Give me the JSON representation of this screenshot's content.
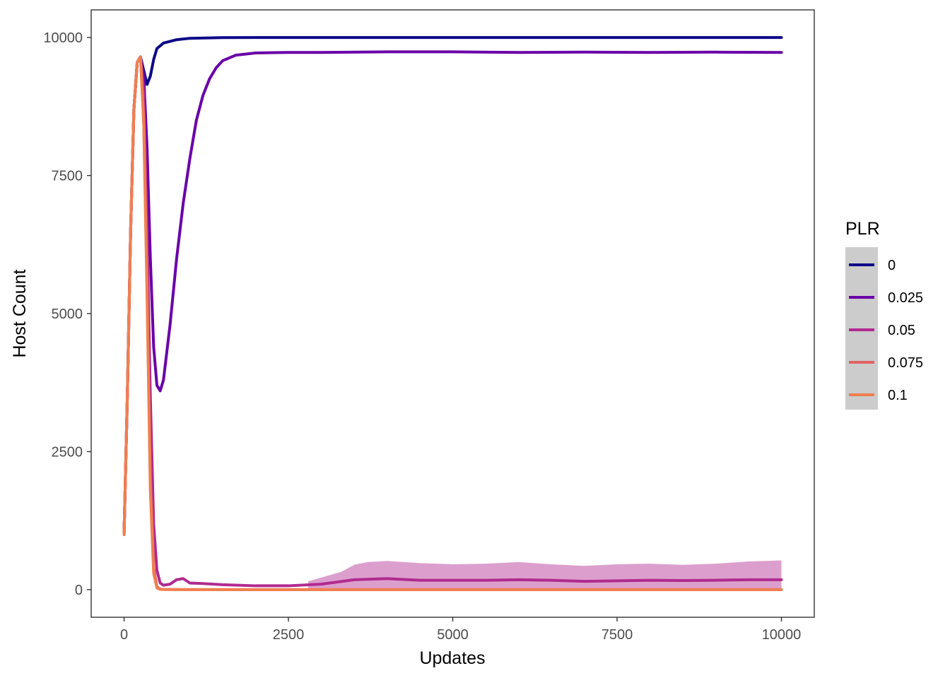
{
  "chart_data": {
    "type": "line",
    "xlabel": "Updates",
    "ylabel": "Host Count",
    "xlim": [
      -500,
      10500
    ],
    "ylim": [
      -500,
      10500
    ],
    "x_ticks": [
      0,
      2500,
      5000,
      7500,
      10000
    ],
    "y_ticks": [
      0,
      2500,
      5000,
      7500,
      10000
    ],
    "x_tick_labels": [
      "0",
      "2500",
      "5000",
      "7500",
      "10000"
    ],
    "y_tick_labels": [
      "0",
      "2500",
      "5000",
      "7500",
      "10000"
    ],
    "grid": false,
    "legend": {
      "title": "PLR",
      "placement": "right",
      "background": "#cccccc"
    },
    "series": [
      {
        "name": "0",
        "color": "#0d0887",
        "points": [
          [
            0,
            1000
          ],
          [
            50,
            3500
          ],
          [
            100,
            6500
          ],
          [
            150,
            8700
          ],
          [
            200,
            9550
          ],
          [
            250,
            9650
          ],
          [
            300,
            9400
          ],
          [
            350,
            9150
          ],
          [
            400,
            9300
          ],
          [
            450,
            9600
          ],
          [
            500,
            9800
          ],
          [
            600,
            9900
          ],
          [
            800,
            9960
          ],
          [
            1000,
            9985
          ],
          [
            1500,
            9998
          ],
          [
            2000,
            10000
          ],
          [
            4000,
            10000
          ],
          [
            6000,
            10000
          ],
          [
            8000,
            10000
          ],
          [
            10000,
            10000
          ]
        ]
      },
      {
        "name": "0.025",
        "color": "#6a00a8",
        "points": [
          [
            0,
            1000
          ],
          [
            50,
            3500
          ],
          [
            100,
            6500
          ],
          [
            150,
            8700
          ],
          [
            200,
            9550
          ],
          [
            250,
            9650
          ],
          [
            300,
            9300
          ],
          [
            350,
            8000
          ],
          [
            400,
            6000
          ],
          [
            450,
            4400
          ],
          [
            500,
            3700
          ],
          [
            550,
            3600
          ],
          [
            600,
            3800
          ],
          [
            700,
            4800
          ],
          [
            800,
            6000
          ],
          [
            900,
            7000
          ],
          [
            1000,
            7800
          ],
          [
            1100,
            8500
          ],
          [
            1200,
            8950
          ],
          [
            1300,
            9250
          ],
          [
            1400,
            9450
          ],
          [
            1500,
            9580
          ],
          [
            1700,
            9680
          ],
          [
            2000,
            9720
          ],
          [
            2500,
            9730
          ],
          [
            3000,
            9730
          ],
          [
            4000,
            9740
          ],
          [
            5000,
            9740
          ],
          [
            6000,
            9730
          ],
          [
            7000,
            9735
          ],
          [
            8000,
            9730
          ],
          [
            9000,
            9735
          ],
          [
            10000,
            9730
          ]
        ]
      },
      {
        "name": "0.05",
        "color": "#b12a90",
        "band": [
          [
            2800,
            0,
            150
          ],
          [
            3000,
            0,
            220
          ],
          [
            3300,
            0,
            320
          ],
          [
            3500,
            0,
            450
          ],
          [
            3700,
            0,
            500
          ],
          [
            4000,
            0,
            520
          ],
          [
            4500,
            0,
            480
          ],
          [
            5000,
            0,
            460
          ],
          [
            5500,
            0,
            470
          ],
          [
            6000,
            0,
            500
          ],
          [
            6500,
            0,
            460
          ],
          [
            7000,
            0,
            430
          ],
          [
            7500,
            0,
            460
          ],
          [
            8000,
            0,
            470
          ],
          [
            8500,
            0,
            450
          ],
          [
            9000,
            0,
            470
          ],
          [
            9500,
            0,
            510
          ],
          [
            10000,
            0,
            530
          ]
        ],
        "points": [
          [
            0,
            1000
          ],
          [
            50,
            3500
          ],
          [
            100,
            6500
          ],
          [
            150,
            8700
          ],
          [
            200,
            9550
          ],
          [
            250,
            9650
          ],
          [
            300,
            9000
          ],
          [
            350,
            6500
          ],
          [
            400,
            3500
          ],
          [
            450,
            1200
          ],
          [
            500,
            350
          ],
          [
            550,
            120
          ],
          [
            600,
            80
          ],
          [
            700,
            100
          ],
          [
            800,
            180
          ],
          [
            900,
            200
          ],
          [
            1000,
            120
          ],
          [
            1200,
            110
          ],
          [
            1500,
            90
          ],
          [
            2000,
            70
          ],
          [
            2500,
            70
          ],
          [
            3000,
            100
          ],
          [
            3500,
            180
          ],
          [
            4000,
            200
          ],
          [
            4500,
            170
          ],
          [
            5000,
            170
          ],
          [
            5500,
            170
          ],
          [
            6000,
            180
          ],
          [
            6500,
            170
          ],
          [
            7000,
            150
          ],
          [
            7500,
            160
          ],
          [
            8000,
            170
          ],
          [
            8500,
            165
          ],
          [
            9000,
            170
          ],
          [
            9500,
            180
          ],
          [
            10000,
            180
          ]
        ]
      },
      {
        "name": "0.075",
        "color": "#e16462",
        "points": [
          [
            0,
            1000
          ],
          [
            50,
            3500
          ],
          [
            100,
            6500
          ],
          [
            150,
            8700
          ],
          [
            200,
            9550
          ],
          [
            250,
            9650
          ],
          [
            300,
            8500
          ],
          [
            350,
            5500
          ],
          [
            400,
            2000
          ],
          [
            450,
            400
          ],
          [
            500,
            50
          ],
          [
            550,
            10
          ],
          [
            600,
            5
          ],
          [
            800,
            3
          ],
          [
            1000,
            2
          ],
          [
            2000,
            1
          ],
          [
            4000,
            0
          ],
          [
            6000,
            0
          ],
          [
            8000,
            0
          ],
          [
            10000,
            0
          ]
        ]
      },
      {
        "name": "0.1",
        "color": "#f07f4f",
        "points": [
          [
            0,
            1000
          ],
          [
            50,
            3500
          ],
          [
            100,
            6500
          ],
          [
            150,
            8700
          ],
          [
            200,
            9550
          ],
          [
            250,
            9650
          ],
          [
            300,
            8400
          ],
          [
            350,
            5300
          ],
          [
            400,
            1800
          ],
          [
            450,
            300
          ],
          [
            500,
            30
          ],
          [
            550,
            5
          ],
          [
            600,
            2
          ],
          [
            800,
            0
          ],
          [
            2000,
            0
          ],
          [
            4000,
            0
          ],
          [
            6000,
            0
          ],
          [
            8000,
            0
          ],
          [
            10000,
            0
          ]
        ]
      }
    ]
  }
}
